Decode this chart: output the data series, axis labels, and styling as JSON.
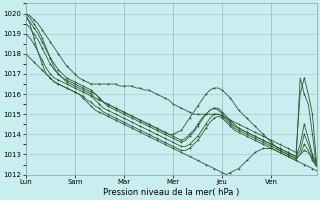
{
  "title": "",
  "xlabel": "Pression niveau de la mer( hPa )",
  "bg_color": "#c8eef0",
  "grid_color": "#a0c8c8",
  "line_color": "#2d5a2d",
  "ylim": [
    1012,
    1020.5
  ],
  "yticks": [
    1012,
    1013,
    1014,
    1015,
    1016,
    1017,
    1018,
    1019,
    1020
  ],
  "xtick_labels": [
    "Lun",
    "Sam",
    "Mar",
    "Mer",
    "Jeu",
    "Ven"
  ],
  "xtick_pos": [
    0,
    12,
    24,
    36,
    48,
    60
  ],
  "vline_pos": [
    0,
    12,
    24,
    36,
    48,
    60
  ],
  "n_points": 72,
  "lines": [
    [
      1020.0,
      1019.9,
      1019.7,
      1019.5,
      1019.2,
      1018.9,
      1018.6,
      1018.3,
      1018.0,
      1017.7,
      1017.4,
      1017.2,
      1017.0,
      1016.8,
      1016.7,
      1016.6,
      1016.5,
      1016.5,
      1016.5,
      1016.5,
      1016.5,
      1016.5,
      1016.5,
      1016.4,
      1016.4,
      1016.4,
      1016.4,
      1016.3,
      1016.3,
      1016.2,
      1016.2,
      1016.1,
      1016.0,
      1015.9,
      1015.8,
      1015.7,
      1015.5,
      1015.4,
      1015.3,
      1015.2,
      1015.1,
      1015.0,
      1015.0,
      1015.0,
      1015.0,
      1015.0,
      1015.0,
      1015.0,
      1014.9,
      1014.8,
      1014.7,
      1014.6,
      1014.5,
      1014.4,
      1014.3,
      1014.2,
      1014.1,
      1014.0,
      1013.9,
      1013.8,
      1013.7,
      1013.6,
      1013.5,
      1013.4,
      1013.3,
      1013.2,
      1013.1,
      1016.0,
      1016.8,
      1016.0,
      1015.0,
      1012.6
    ],
    [
      1020.0,
      1019.8,
      1019.5,
      1019.2,
      1018.8,
      1018.3,
      1017.8,
      1017.3,
      1017.0,
      1016.8,
      1016.6,
      1016.5,
      1016.4,
      1016.3,
      1016.2,
      1016.1,
      1016.0,
      1015.8,
      1015.7,
      1015.6,
      1015.5,
      1015.4,
      1015.3,
      1015.2,
      1015.1,
      1015.0,
      1014.9,
      1014.8,
      1014.7,
      1014.6,
      1014.5,
      1014.4,
      1014.3,
      1014.2,
      1014.1,
      1014.0,
      1014.0,
      1014.1,
      1014.2,
      1014.5,
      1014.8,
      1015.1,
      1015.4,
      1015.7,
      1016.0,
      1016.2,
      1016.3,
      1016.3,
      1016.2,
      1016.0,
      1015.8,
      1015.5,
      1015.2,
      1015.0,
      1014.8,
      1014.6,
      1014.4,
      1014.2,
      1014.0,
      1013.8,
      1013.6,
      1013.4,
      1013.2,
      1013.1,
      1013.0,
      1012.9,
      1012.8,
      1013.0,
      1013.2,
      1013.1,
      1012.8,
      1012.4
    ],
    [
      1019.8,
      1019.6,
      1019.3,
      1019.0,
      1018.6,
      1018.2,
      1017.8,
      1017.5,
      1017.2,
      1017.0,
      1016.8,
      1016.7,
      1016.6,
      1016.5,
      1016.4,
      1016.3,
      1016.2,
      1016.0,
      1015.8,
      1015.6,
      1015.5,
      1015.4,
      1015.3,
      1015.2,
      1015.1,
      1015.0,
      1014.9,
      1014.8,
      1014.7,
      1014.6,
      1014.5,
      1014.4,
      1014.3,
      1014.2,
      1014.1,
      1014.0,
      1013.9,
      1013.8,
      1013.7,
      1013.8,
      1014.0,
      1014.2,
      1014.5,
      1014.8,
      1015.0,
      1015.2,
      1015.3,
      1015.2,
      1015.0,
      1014.8,
      1014.6,
      1014.4,
      1014.3,
      1014.2,
      1014.1,
      1014.0,
      1013.9,
      1013.8,
      1013.7,
      1013.6,
      1013.5,
      1013.4,
      1013.3,
      1013.2,
      1013.1,
      1013.0,
      1012.9,
      1013.5,
      1014.5,
      1013.8,
      1013.0,
      1012.6
    ],
    [
      1019.5,
      1019.3,
      1019.0,
      1018.7,
      1018.3,
      1017.9,
      1017.5,
      1017.2,
      1017.0,
      1016.8,
      1016.7,
      1016.6,
      1016.5,
      1016.4,
      1016.3,
      1016.2,
      1016.1,
      1016.0,
      1015.8,
      1015.6,
      1015.4,
      1015.3,
      1015.2,
      1015.1,
      1015.0,
      1014.9,
      1014.8,
      1014.7,
      1014.6,
      1014.5,
      1014.4,
      1014.3,
      1014.2,
      1014.1,
      1014.0,
      1013.9,
      1013.8,
      1013.7,
      1013.6,
      1013.7,
      1013.9,
      1014.1,
      1014.4,
      1014.7,
      1015.0,
      1015.2,
      1015.3,
      1015.3,
      1015.1,
      1014.9,
      1014.7,
      1014.5,
      1014.3,
      1014.2,
      1014.1,
      1014.0,
      1013.9,
      1013.8,
      1013.7,
      1013.6,
      1013.5,
      1013.4,
      1013.3,
      1013.2,
      1013.1,
      1013.0,
      1012.9,
      1013.2,
      1014.0,
      1013.5,
      1012.9,
      1012.5
    ],
    [
      1019.0,
      1018.8,
      1018.5,
      1018.1,
      1017.7,
      1017.3,
      1017.0,
      1016.8,
      1016.7,
      1016.6,
      1016.5,
      1016.4,
      1016.3,
      1016.2,
      1016.1,
      1016.0,
      1015.9,
      1015.7,
      1015.5,
      1015.3,
      1015.2,
      1015.1,
      1015.0,
      1014.9,
      1014.8,
      1014.7,
      1014.6,
      1014.5,
      1014.4,
      1014.3,
      1014.2,
      1014.1,
      1014.0,
      1013.9,
      1013.8,
      1013.7,
      1013.6,
      1013.5,
      1013.4,
      1013.4,
      1013.5,
      1013.7,
      1013.9,
      1014.2,
      1014.5,
      1014.8,
      1015.0,
      1015.0,
      1014.9,
      1014.7,
      1014.5,
      1014.3,
      1014.2,
      1014.1,
      1014.0,
      1013.9,
      1013.8,
      1013.7,
      1013.6,
      1013.5,
      1013.4,
      1013.3,
      1013.2,
      1013.1,
      1013.0,
      1012.9,
      1012.8,
      1013.0,
      1013.5,
      1013.2,
      1012.7,
      1012.4
    ],
    [
      1018.0,
      1017.8,
      1017.6,
      1017.4,
      1017.2,
      1017.0,
      1016.8,
      1016.6,
      1016.5,
      1016.4,
      1016.3,
      1016.2,
      1016.1,
      1016.0,
      1015.9,
      1015.7,
      1015.6,
      1015.4,
      1015.3,
      1015.1,
      1015.0,
      1014.9,
      1014.8,
      1014.7,
      1014.6,
      1014.5,
      1014.4,
      1014.3,
      1014.2,
      1014.1,
      1014.0,
      1013.9,
      1013.8,
      1013.7,
      1013.6,
      1013.5,
      1013.4,
      1013.3,
      1013.2,
      1013.2,
      1013.3,
      1013.5,
      1013.7,
      1014.0,
      1014.3,
      1014.6,
      1014.8,
      1014.9,
      1014.8,
      1014.6,
      1014.4,
      1014.2,
      1014.1,
      1014.0,
      1013.9,
      1013.8,
      1013.7,
      1013.6,
      1013.5,
      1013.4,
      1013.3,
      1013.2,
      1013.1,
      1013.0,
      1012.9,
      1012.8,
      1012.7,
      1012.6,
      1012.5,
      1012.4,
      1012.3,
      1012.2
    ],
    [
      1020.0,
      1019.5,
      1018.8,
      1018.1,
      1017.5,
      1017.0,
      1016.8,
      1016.6,
      1016.5,
      1016.4,
      1016.3,
      1016.2,
      1016.1,
      1016.0,
      1015.8,
      1015.6,
      1015.4,
      1015.2,
      1015.1,
      1015.0,
      1014.9,
      1014.8,
      1014.7,
      1014.6,
      1014.5,
      1014.4,
      1014.3,
      1014.2,
      1014.1,
      1014.0,
      1013.9,
      1013.8,
      1013.7,
      1013.6,
      1013.5,
      1013.4,
      1013.3,
      1013.2,
      1013.1,
      1013.0,
      1012.9,
      1012.8,
      1012.7,
      1012.6,
      1012.5,
      1012.4,
      1012.3,
      1012.2,
      1012.1,
      1012.0,
      1012.1,
      1012.2,
      1012.3,
      1012.5,
      1012.7,
      1012.9,
      1013.1,
      1013.2,
      1013.3,
      1013.3,
      1013.3,
      1013.2,
      1013.1,
      1013.0,
      1012.9,
      1012.8,
      1012.7,
      1016.8,
      1016.0,
      1015.5,
      1014.0,
      1012.4
    ]
  ]
}
